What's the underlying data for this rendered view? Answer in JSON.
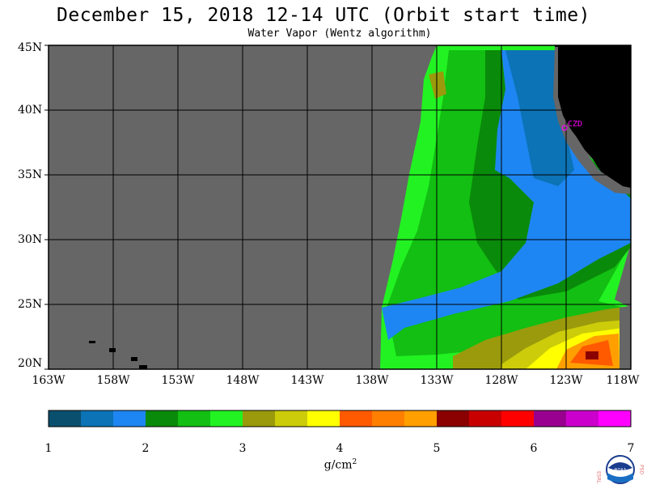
{
  "title": "December 15, 2018  12-14 UTC  (Orbit start time)",
  "subtitle": "Water Vapor (Wentz algorithm)",
  "lat_labels": [
    "45N",
    "40N",
    "35N",
    "30N",
    "25N",
    "20N"
  ],
  "lon_labels": [
    "163W",
    "158W",
    "153W",
    "148W",
    "143W",
    "138W",
    "133W",
    "128W",
    "123W",
    "118W"
  ],
  "station_label": "CZD",
  "colorbar": {
    "ticks": [
      "1",
      "2",
      "3",
      "4",
      "5",
      "6",
      "7"
    ],
    "colors": [
      "#0a4f6e",
      "#0b73b6",
      "#1e86f2",
      "#0a8a0a",
      "#12bf12",
      "#22f222",
      "#9a9a0c",
      "#cccc0a",
      "#ffff00",
      "#ff5a00",
      "#ff7f00",
      "#ff9f00",
      "#8b0000",
      "#c80000",
      "#ff0000",
      "#9a008f",
      "#cc00cc",
      "#ff00ff"
    ],
    "units_prefix": "g/cm",
    "units_exp": "2"
  },
  "colors": {
    "no_data": "#666666",
    "land": "#000000",
    "station": "#ff00ff"
  },
  "logo": {
    "left_text": "ESRL",
    "right_text": "PSD",
    "center_text": "NOAA"
  }
}
